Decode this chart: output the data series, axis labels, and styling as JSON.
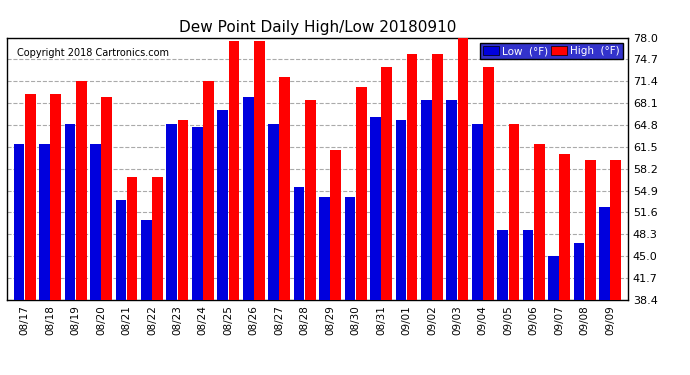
{
  "title": "Dew Point Daily High/Low 20180910",
  "copyright": "Copyright 2018 Cartronics.com",
  "background_color": "#ffffff",
  "plot_bg_color": "#ffffff",
  "grid_color": "#aaaaaa",
  "low_color": "#0000dd",
  "high_color": "#ff0000",
  "ylim": [
    38.4,
    78.0
  ],
  "yticks": [
    38.4,
    41.7,
    45.0,
    48.3,
    51.6,
    54.9,
    58.2,
    61.5,
    64.8,
    68.1,
    71.4,
    74.7,
    78.0
  ],
  "dates": [
    "08/17",
    "08/18",
    "08/19",
    "08/20",
    "08/21",
    "08/22",
    "08/23",
    "08/24",
    "08/25",
    "08/26",
    "08/27",
    "08/28",
    "08/29",
    "08/30",
    "08/31",
    "09/01",
    "09/02",
    "09/03",
    "09/04",
    "09/05",
    "09/06",
    "09/07",
    "09/08",
    "09/09"
  ],
  "low_values": [
    62.0,
    62.0,
    65.0,
    62.0,
    53.5,
    50.5,
    65.0,
    64.5,
    67.0,
    69.0,
    65.0,
    55.5,
    54.0,
    54.0,
    66.0,
    65.5,
    68.5,
    68.5,
    65.0,
    49.0,
    49.0,
    45.0,
    47.0,
    52.5
  ],
  "high_values": [
    69.5,
    69.5,
    71.5,
    69.0,
    57.0,
    57.0,
    65.5,
    71.5,
    77.5,
    77.5,
    72.0,
    68.5,
    61.0,
    70.5,
    73.5,
    75.5,
    75.5,
    78.0,
    73.5,
    65.0,
    62.0,
    60.5,
    59.5,
    59.5
  ],
  "legend_bg": "#0000cc",
  "legend_text_low": "Low  (°F)",
  "legend_text_high": "High  (°F)"
}
